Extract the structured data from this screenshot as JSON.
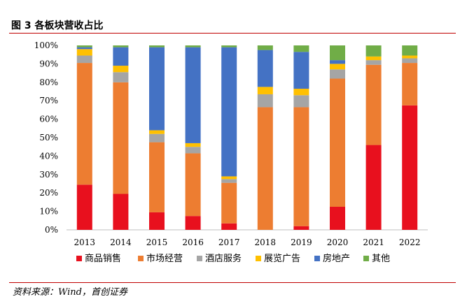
{
  "figure": {
    "title": "图 3  各板块营收占比",
    "source": "资料来源：Wind，首创证券"
  },
  "colors": {
    "商品销售": "#e8101e",
    "市场经营": "#ed7d31",
    "酒店服务": "#a5a5a5",
    "展览广告": "#ffc000",
    "房地产": "#4472c4",
    "其他": "#70ad47",
    "rule": "#c00000"
  },
  "chart_data": {
    "type": "bar",
    "stacked": true,
    "title": "",
    "xlabel": "",
    "ylabel": "",
    "ylim": [
      0,
      100
    ],
    "y_ticks": [
      "0%",
      "10%",
      "20%",
      "30%",
      "40%",
      "50%",
      "60%",
      "70%",
      "80%",
      "90%",
      "100%"
    ],
    "grid": false,
    "legend_position": "bottom",
    "categories": [
      "2013",
      "2014",
      "2015",
      "2016",
      "2017",
      "2018",
      "2019",
      "2020",
      "2021",
      "2022"
    ],
    "series": [
      {
        "name": "商品销售",
        "values": [
          24.5,
          19.5,
          9.5,
          7.5,
          3.5,
          0,
          2,
          12.5,
          46,
          67.5
        ]
      },
      {
        "name": "市场经营",
        "values": [
          66,
          60.5,
          38,
          34,
          22,
          66.5,
          64.5,
          69.5,
          43.5,
          23
        ]
      },
      {
        "name": "酒店服务",
        "values": [
          4,
          5.5,
          4.5,
          3.5,
          2,
          7,
          6.5,
          5,
          2.5,
          2.5
        ]
      },
      {
        "name": "展览广告",
        "values": [
          3.5,
          3.5,
          2,
          2,
          1.5,
          4,
          3.5,
          3,
          2,
          1.5
        ]
      },
      {
        "name": "房地产",
        "values": [
          1,
          10,
          45,
          52,
          70,
          20,
          20,
          2,
          0,
          0
        ]
      },
      {
        "name": "其他",
        "values": [
          1,
          1,
          1,
          1,
          1,
          2.5,
          3.5,
          8,
          6,
          5.5
        ]
      }
    ]
  }
}
